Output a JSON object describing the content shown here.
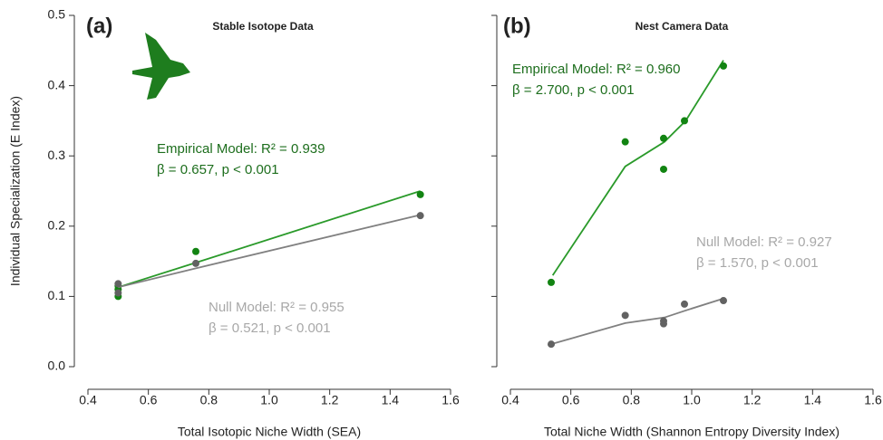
{
  "chart_data": [
    {
      "type": "scatter",
      "panel_label": "(a)",
      "title": "Stable Isotope Data",
      "x_label": "Total Isotopic Niche Width (SEA)",
      "y_label": "Individual Specialization (E Index)",
      "xlim": [
        0.4,
        1.6
      ],
      "xticks": [
        0.4,
        0.6,
        0.8,
        {
          "value": 1,
          "label": "1.0"
        },
        1.2,
        1.4,
        1.6
      ],
      "ylim": [
        0,
        0.5
      ],
      "yticks": [
        {
          "value": 0,
          "label": "0.0"
        },
        0.1,
        0.2,
        0.3,
        0.4,
        0.5
      ],
      "series": [
        {
          "color": "#2a9a2a",
          "point_color": "#128412",
          "x": [
            0.5,
            0.5,
            0.5,
            0.757,
            1.5
          ],
          "values": [
            0.1,
            0.115,
            0.11,
            0.164,
            0.245
          ],
          "fit_x": [
            0.5,
            0.757,
            1.5
          ],
          "fit_values": [
            0.113,
            0.148,
            0.25
          ]
        },
        {
          "color": "#808080",
          "point_color": "#626262",
          "x": [
            0.5,
            0.5,
            0.757,
            1.5
          ],
          "values": [
            0.118,
            0.105,
            0.147,
            0.215
          ],
          "fit_x": [
            0.5,
            0.757,
            1.5
          ],
          "fit_values": [
            0.113,
            0.14,
            0.216
          ]
        }
      ],
      "annotations": [
        {
          "color": "#1d6e1d",
          "lines": [
            "Empirical Model: R² = 0.939",
            "β = 0.657, p < 0.001"
          ]
        },
        {
          "color": "#a8a8a8",
          "lines": [
            "Null Model: R² = 0.955",
            "β = 0.521, p < 0.001"
          ]
        }
      ]
    },
    {
      "type": "scatter",
      "panel_label": "(b)",
      "title": "Nest Camera Data",
      "x_label": "Total Niche Width (Shannon Entropy Diversity Index)",
      "xlim": [
        0.4,
        1.6
      ],
      "xticks": [
        0.4,
        0.6,
        0.8,
        {
          "value": 1,
          "label": "1.0"
        },
        1.2,
        1.4,
        1.6
      ],
      "ylim": [
        0,
        0.5
      ],
      "series": [
        {
          "color": "#2a9a2a",
          "point_color": "#128412",
          "x": [
            0.535,
            0.78,
            0.907,
            0.907,
            0.976,
            1.105
          ],
          "values": [
            0.12,
            0.32,
            0.325,
            0.281,
            0.35,
            0.428
          ],
          "fit_x": [
            0.54,
            0.78,
            0.91,
            0.98,
            1.105
          ],
          "fit_values": [
            0.13,
            0.285,
            0.32,
            0.35,
            0.436
          ]
        },
        {
          "color": "#808080",
          "point_color": "#626262",
          "x": [
            0.535,
            0.78,
            0.907,
            0.907,
            0.976,
            1.105
          ],
          "values": [
            0.032,
            0.073,
            0.065,
            0.061,
            0.089,
            0.094
          ],
          "fit_x": [
            0.535,
            0.78,
            0.91,
            0.98,
            1.105
          ],
          "fit_values": [
            0.032,
            0.062,
            0.07,
            0.08,
            0.097
          ]
        }
      ],
      "annotations": [
        {
          "color": "#1d6e1d",
          "lines": [
            "Empirical Model: R² = 0.960",
            "β = 2.700, p < 0.001"
          ]
        },
        {
          "color": "#a8a8a8",
          "lines": [
            "Null Model: R² = 0.927",
            "β = 1.570, p < 0.001"
          ]
        }
      ]
    }
  ]
}
